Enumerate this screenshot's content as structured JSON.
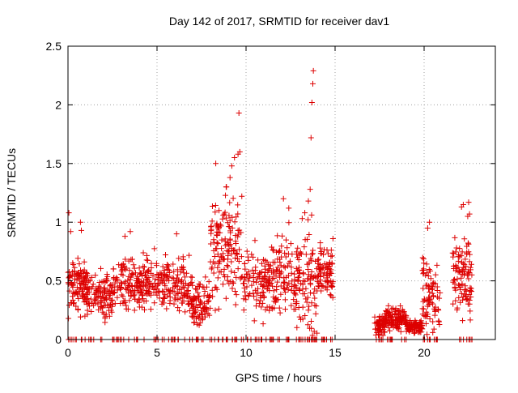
{
  "chart_data": {
    "type": "scatter",
    "title": "Day 142 of 2017, SRMTID for receiver dav1",
    "xlabel": "GPS time / hours",
    "ylabel": "SRMTID / TECUs",
    "xlim": [
      0,
      24
    ],
    "ylim": [
      0,
      2.5
    ],
    "xticks": [
      0,
      5,
      10,
      15,
      20
    ],
    "yticks": [
      0,
      0.5,
      1,
      1.5,
      2,
      2.5
    ],
    "xtick_labels": [
      "0",
      "5",
      "10",
      "15",
      "20"
    ],
    "ytick_labels": [
      "0",
      "0.5",
      "1",
      "1.5",
      "2",
      "2.5"
    ],
    "grid": true,
    "marker": "+",
    "series": [
      {
        "name": "dav1",
        "color": "#dd0000",
        "clusters": [
          {
            "start": 0.0,
            "end": 1.0,
            "count": 110,
            "base": 0.45,
            "spread": 0.18,
            "zero_frac": 0.08
          },
          {
            "start": 1.0,
            "end": 2.5,
            "count": 130,
            "base": 0.38,
            "spread": 0.14,
            "zero_frac": 0.08
          },
          {
            "start": 2.5,
            "end": 4.0,
            "count": 120,
            "base": 0.47,
            "spread": 0.17,
            "zero_frac": 0.08
          },
          {
            "start": 4.0,
            "end": 5.5,
            "count": 120,
            "base": 0.48,
            "spread": 0.16,
            "zero_frac": 0.08
          },
          {
            "start": 5.5,
            "end": 7.0,
            "count": 120,
            "base": 0.45,
            "spread": 0.17,
            "zero_frac": 0.08
          },
          {
            "start": 7.0,
            "end": 8.0,
            "count": 90,
            "base": 0.32,
            "spread": 0.14,
            "zero_frac": 0.08
          },
          {
            "start": 8.0,
            "end": 9.8,
            "count": 160,
            "base": 0.75,
            "spread": 0.32,
            "zero_frac": 0.08
          },
          {
            "start": 9.8,
            "end": 11.5,
            "count": 130,
            "base": 0.48,
            "spread": 0.22,
            "zero_frac": 0.08
          },
          {
            "start": 11.5,
            "end": 13.0,
            "count": 130,
            "base": 0.55,
            "spread": 0.25,
            "zero_frac": 0.08
          },
          {
            "start": 13.0,
            "end": 14.0,
            "count": 90,
            "base": 0.5,
            "spread": 0.35,
            "zero_frac": 0.12
          },
          {
            "start": 14.0,
            "end": 14.9,
            "count": 90,
            "base": 0.58,
            "spread": 0.17,
            "zero_frac": 0.08
          },
          {
            "start": 17.2,
            "end": 17.8,
            "count": 60,
            "base": 0.12,
            "spread": 0.07,
            "zero_frac": 0.1
          },
          {
            "start": 17.8,
            "end": 19.0,
            "count": 140,
            "base": 0.18,
            "spread": 0.07,
            "zero_frac": 0.04
          },
          {
            "start": 19.0,
            "end": 19.9,
            "count": 90,
            "base": 0.11,
            "spread": 0.04,
            "zero_frac": 0.04
          },
          {
            "start": 19.9,
            "end": 20.9,
            "count": 90,
            "base": 0.38,
            "spread": 0.25,
            "zero_frac": 0.1
          },
          {
            "start": 21.6,
            "end": 22.7,
            "count": 110,
            "base": 0.55,
            "spread": 0.25,
            "zero_frac": 0.1
          }
        ],
        "highlights": [
          [
            0.05,
            1.08
          ],
          [
            0.15,
            0.92
          ],
          [
            0.7,
            1.0
          ],
          [
            0.75,
            0.93
          ],
          [
            3.2,
            0.88
          ],
          [
            3.5,
            0.92
          ],
          [
            8.3,
            1.5
          ],
          [
            8.9,
            1.3
          ],
          [
            9.2,
            1.48
          ],
          [
            9.35,
            1.55
          ],
          [
            9.55,
            1.58
          ],
          [
            9.6,
            1.93
          ],
          [
            9.65,
            1.6
          ],
          [
            9.1,
            1.38
          ],
          [
            13.65,
            1.72
          ],
          [
            13.7,
            2.02
          ],
          [
            13.75,
            2.18
          ],
          [
            13.78,
            2.29
          ],
          [
            13.6,
            1.28
          ],
          [
            13.5,
            1.18
          ],
          [
            12.1,
            1.2
          ],
          [
            12.4,
            1.12
          ],
          [
            13.3,
            1.08
          ],
          [
            20.3,
            1.0
          ],
          [
            20.2,
            0.95
          ],
          [
            22.2,
            1.15
          ],
          [
            22.1,
            1.13
          ],
          [
            22.5,
            1.17
          ],
          [
            22.55,
            1.07
          ],
          [
            22.45,
            1.05
          ],
          [
            6.1,
            0.9
          ]
        ]
      }
    ]
  }
}
